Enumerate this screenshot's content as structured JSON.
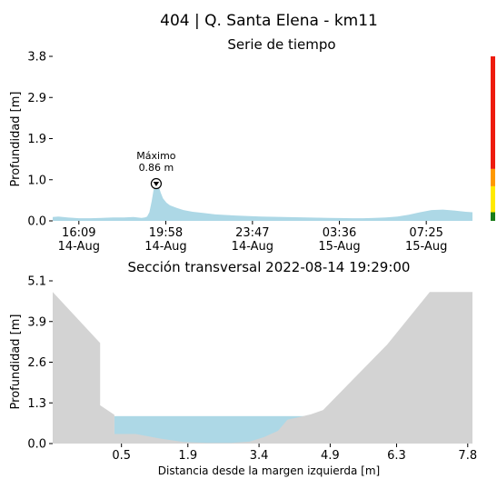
{
  "page_title": "404 | Q. Santa Elena - km11",
  "chart_data": [
    {
      "type": "area",
      "title": "Serie de tiempo",
      "ylabel": "Profundidad [m]",
      "xlabel": "",
      "ylim": [
        0,
        3.8
      ],
      "x_range": [
        -1.15,
        17.3
      ],
      "yticks": [
        {
          "value": 0.0,
          "label": "0.0"
        },
        {
          "value": 0.95,
          "label": "1.0"
        },
        {
          "value": 1.9,
          "label": "1.9"
        },
        {
          "value": 2.85,
          "label": "2.9"
        },
        {
          "value": 3.8,
          "label": "3.8"
        }
      ],
      "xticks": [
        {
          "value": 0,
          "label": [
            "16:09",
            "14-Aug"
          ]
        },
        {
          "value": 3.82,
          "label": [
            "19:58",
            "14-Aug"
          ]
        },
        {
          "value": 7.63,
          "label": [
            "23:47",
            "14-Aug"
          ]
        },
        {
          "value": 11.45,
          "label": [
            "03:36",
            "15-Aug"
          ]
        },
        {
          "value": 15.27,
          "label": [
            "07:25",
            "15-Aug"
          ]
        }
      ],
      "x": [
        -1.15,
        -0.9,
        -0.5,
        0.0,
        0.5,
        1.0,
        1.5,
        2.0,
        2.4,
        2.75,
        2.9,
        3.0,
        3.1,
        3.2,
        3.28,
        3.34,
        3.4,
        3.46,
        3.52,
        3.6,
        3.7,
        3.85,
        4.0,
        4.3,
        4.6,
        5.0,
        5.5,
        6.0,
        7.0,
        8.0,
        9.0,
        10.0,
        11.0,
        12.0,
        12.5,
        13.0,
        13.5,
        14.0,
        14.5,
        15.0,
        15.5,
        16.0,
        16.5,
        17.0,
        17.3
      ],
      "series": [
        {
          "values": [
            0.09,
            0.1,
            0.08,
            0.06,
            0.06,
            0.07,
            0.08,
            0.08,
            0.09,
            0.07,
            0.08,
            0.1,
            0.2,
            0.45,
            0.7,
            0.82,
            0.86,
            0.84,
            0.78,
            0.65,
            0.52,
            0.42,
            0.36,
            0.3,
            0.25,
            0.21,
            0.18,
            0.15,
            0.12,
            0.1,
            0.09,
            0.08,
            0.07,
            0.06,
            0.06,
            0.07,
            0.08,
            0.1,
            0.14,
            0.2,
            0.25,
            0.26,
            0.24,
            0.21,
            0.2
          ],
          "color": "#add8e6"
        }
      ],
      "annotations": [
        {
          "text": [
            "Máximo",
            "0.86 m"
          ],
          "x": 3.4,
          "y": 0.86,
          "marker": "circled-down-triangle"
        }
      ],
      "threshold_bar": [
        {
          "from": 0.0,
          "to": 0.2,
          "color": "#1a7d1a"
        },
        {
          "from": 0.2,
          "to": 0.8,
          "color": "#ffea00"
        },
        {
          "from": 0.8,
          "to": 1.2,
          "color": "#ff9900"
        },
        {
          "from": 1.2,
          "to": 3.8,
          "color": "#ee1c0e"
        }
      ],
      "grid": false
    },
    {
      "type": "area",
      "title": "Sección transversal 2022-08-14 19:29:00",
      "ylabel": "Profundidad [m]",
      "xlabel": "Distancia desde la margen izquierda [m]",
      "ylim": [
        0,
        5.1
      ],
      "xlim": [
        -0.95,
        7.9
      ],
      "yticks": [
        {
          "value": 0.0,
          "label": "0.0"
        },
        {
          "value": 1.275,
          "label": "1.3"
        },
        {
          "value": 2.55,
          "label": "2.6"
        },
        {
          "value": 3.825,
          "label": "3.9"
        },
        {
          "value": 5.1,
          "label": "5.1"
        }
      ],
      "xticks": [
        {
          "value": 0.5,
          "label": "0.5"
        },
        {
          "value": 1.9,
          "label": "1.9"
        },
        {
          "value": 3.4,
          "label": "3.4"
        },
        {
          "value": 4.9,
          "label": "4.9"
        },
        {
          "value": 6.3,
          "label": "6.3"
        },
        {
          "value": 7.8,
          "label": "7.8"
        }
      ],
      "bed_profile": {
        "x": [
          -0.95,
          0.05,
          0.05,
          0.35,
          0.35,
          0.8,
          1.3,
          1.8,
          2.3,
          2.8,
          3.2,
          3.5,
          3.8,
          4.0,
          4.3,
          4.5,
          4.75,
          6.1,
          7.0,
          7.9
        ],
        "y": [
          4.75,
          3.15,
          1.2,
          0.9,
          0.3,
          0.3,
          0.16,
          0.05,
          0.02,
          0.02,
          0.06,
          0.2,
          0.4,
          0.75,
          0.85,
          0.92,
          1.05,
          3.1,
          4.75,
          4.75
        ],
        "color": "#d3d3d3"
      },
      "water": {
        "x_start": 0.35,
        "x_end": 4.45,
        "level": 0.86,
        "color": "#add8e6"
      },
      "grid": false
    }
  ]
}
